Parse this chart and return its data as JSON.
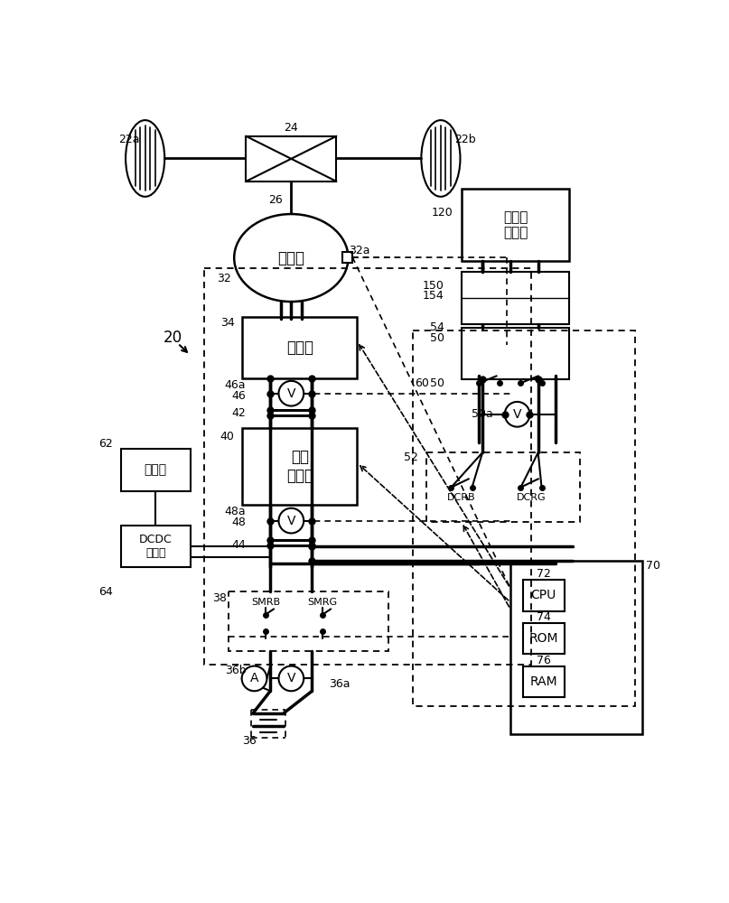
{
  "bg_color": "#ffffff",
  "components": {
    "motor_label": "电动机",
    "inverter_label": "逆变器",
    "boost_label": "升压\n转换器",
    "aux_battery_label": "辅电池",
    "dcdc_label": "DCDC\n转换器",
    "ext_power_label": "外部电\n源装置",
    "cpu_label": "CPU",
    "rom_label": "ROM",
    "ram_label": "RAM"
  }
}
